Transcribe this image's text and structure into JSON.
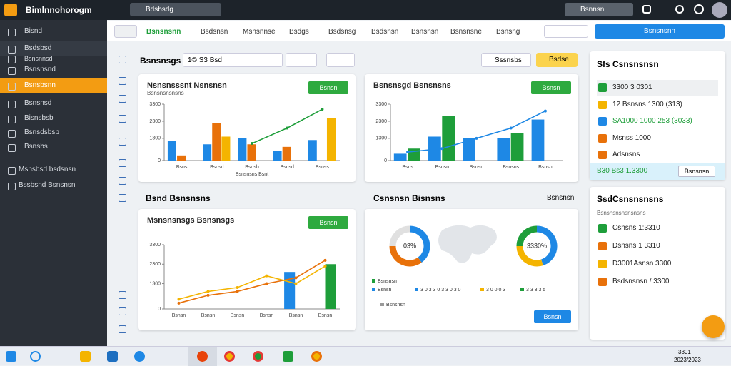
{
  "topbar": {
    "app_title": "Bimlnnohorogm",
    "search": "Bdsbsdg",
    "search_right": "Bsnnsn"
  },
  "sidebar": {
    "items": [
      "Bisnd",
      "Bsdsbsd",
      "Bsnsnnsd",
      "Bsnsnsnd",
      "Bsnsbsnn",
      "Bsnsnsd",
      "Bisnsbsb",
      "Bsnsdsbsb",
      "Bsnsbs",
      "Msnsbsd bsdsnsn",
      "Bssbsnd Bsnsnsn"
    ]
  },
  "toolbar": {
    "crumbs": [
      "Bsnsnsnn",
      "Bsdsnsn",
      "Msnsnnse",
      "Bsdgs",
      "Bsdsnsg",
      "Bsdsnsn",
      "Bsnsnsn",
      "Bsnsnsne",
      "Bsnsng"
    ],
    "button": "Bsnsnsnn"
  },
  "main": {
    "title": "Bsnsnsgs",
    "input": "1© S3 Bsd",
    "dropdown": "Sssnsbs",
    "button": "Bsdse",
    "section2": "Bsnd Bsnsnsns",
    "section3": "Csnsnsn Bisnsns",
    "section3_search": "Bsnsnsn"
  },
  "chart_data": [
    {
      "type": "bar",
      "title": "Nsnsnsssnt Nsnsnsn",
      "subtitle": "Bsnsnsnsnsns",
      "button": "Bsnsn",
      "x_label": "Bsnsnsns Bsnt",
      "categories": [
        "Bsns",
        "Bsnsd",
        "Bsnsb",
        "Bsnsd",
        "Bsnss"
      ],
      "series": [
        {
          "color": "#1e88e5",
          "values": [
            1150,
            950,
            1300,
            550,
            1200
          ]
        },
        {
          "color": "#e8710a",
          "values": [
            300,
            2200,
            950,
            800,
            null
          ]
        },
        {
          "color": "#f4b400",
          "values": [
            null,
            1400,
            null,
            null,
            2500
          ]
        },
        {
          "type": "line",
          "color": "#1e9e3a",
          "values": [
            null,
            null,
            1000,
            1900,
            3000
          ]
        }
      ],
      "ylim": [
        0,
        3300
      ],
      "yticks": [
        0,
        1300,
        2300,
        3300
      ]
    },
    {
      "type": "bar",
      "title": "Bsnsnsgd Bsnsnsns",
      "button": "Bsnsn",
      "categories": [
        "Bsns",
        "Bsnsn",
        "Bsnsn",
        "Bsnsns",
        "Bsnsn"
      ],
      "series": [
        {
          "color": "#1e88e5",
          "values": [
            400,
            1400,
            1300,
            1300,
            2400
          ]
        },
        {
          "color": "#1e9e3a",
          "values": [
            700,
            2600,
            null,
            1600,
            null
          ]
        },
        {
          "type": "line",
          "color": "#1e88e5",
          "values": [
            500,
            700,
            1300,
            1900,
            2900
          ]
        }
      ],
      "ylim": [
        0,
        3300
      ],
      "yticks": [
        0,
        1300,
        2300,
        3300
      ]
    },
    {
      "type": "bar",
      "title": "Msnsnsnsgs Bsnsnsgs",
      "button": "Bsnsn",
      "categories": [
        "Bsnsn",
        "Bsnsn",
        "Bsnsn",
        "Bsnsn",
        "Bsnsn",
        "Bsnsn"
      ],
      "series": [
        {
          "color": "#1e88e5",
          "values": [
            null,
            null,
            null,
            null,
            1900,
            null
          ]
        },
        {
          "color": "#1e9e3a",
          "values": [
            null,
            null,
            null,
            null,
            null,
            2300
          ]
        },
        {
          "type": "line",
          "color": "#e8710a",
          "values": [
            300,
            700,
            900,
            1300,
            1600,
            2500
          ]
        },
        {
          "type": "line",
          "color": "#f4b400",
          "values": [
            500,
            900,
            1100,
            1700,
            1300,
            2200
          ]
        }
      ],
      "ylim": [
        0,
        3300
      ],
      "yticks": [
        0,
        1300,
        2300,
        3300
      ]
    },
    {
      "type": "donut",
      "title": "Csnsnsn Bisnsns",
      "button": "Bsnsn",
      "donuts": [
        {
          "center": "03%",
          "values": [
            40,
            35,
            25
          ],
          "colors": [
            "#1e88e5",
            "#e8710a",
            "#e0e0e0"
          ]
        },
        {
          "center": "3330%",
          "values": [
            45,
            30,
            25
          ],
          "colors": [
            "#1e88e5",
            "#f4b400",
            "#1e9e3a"
          ]
        }
      ],
      "legend": [
        {
          "label": "Bsnsnsn",
          "color": "#1e9e3a"
        },
        {
          "label": "Bsnsn",
          "color": "#1e88e5"
        },
        {
          "label": "3 0 3 3 0 3 3 0 3 0",
          "color": "#1e88e5"
        },
        {
          "label": "3 0 0 0 3",
          "color": "#f4b400"
        },
        {
          "label": "3 3 3 3 5",
          "color": "#1e9e3a"
        },
        {
          "label": "Bsnsnsn",
          "color": "#999999"
        }
      ]
    }
  ],
  "right_panel": {
    "title": "Sfs Csnsnsnsn",
    "items": [
      "3300 3 0301",
      "12 Bsnsns 1300 (313)",
      "SA1000 1000 253 (3033)",
      "Msnss 1000",
      "Adsnsns"
    ],
    "highlight": "B30 Bs3 1.3300",
    "button": "Bsnsnsn"
  },
  "right_panel2": {
    "title": "SsdCsnsnsnsns",
    "sub": "Bsnsnsnsnsnsnsns",
    "items": [
      "Csnsns 1:3310",
      "Dsnsns 1 3310",
      "D3001Asnsn 3300",
      "Bsdsnsnsn / 3300"
    ]
  },
  "taskbar": {
    "time": "3301",
    "date": "2023/2023"
  }
}
